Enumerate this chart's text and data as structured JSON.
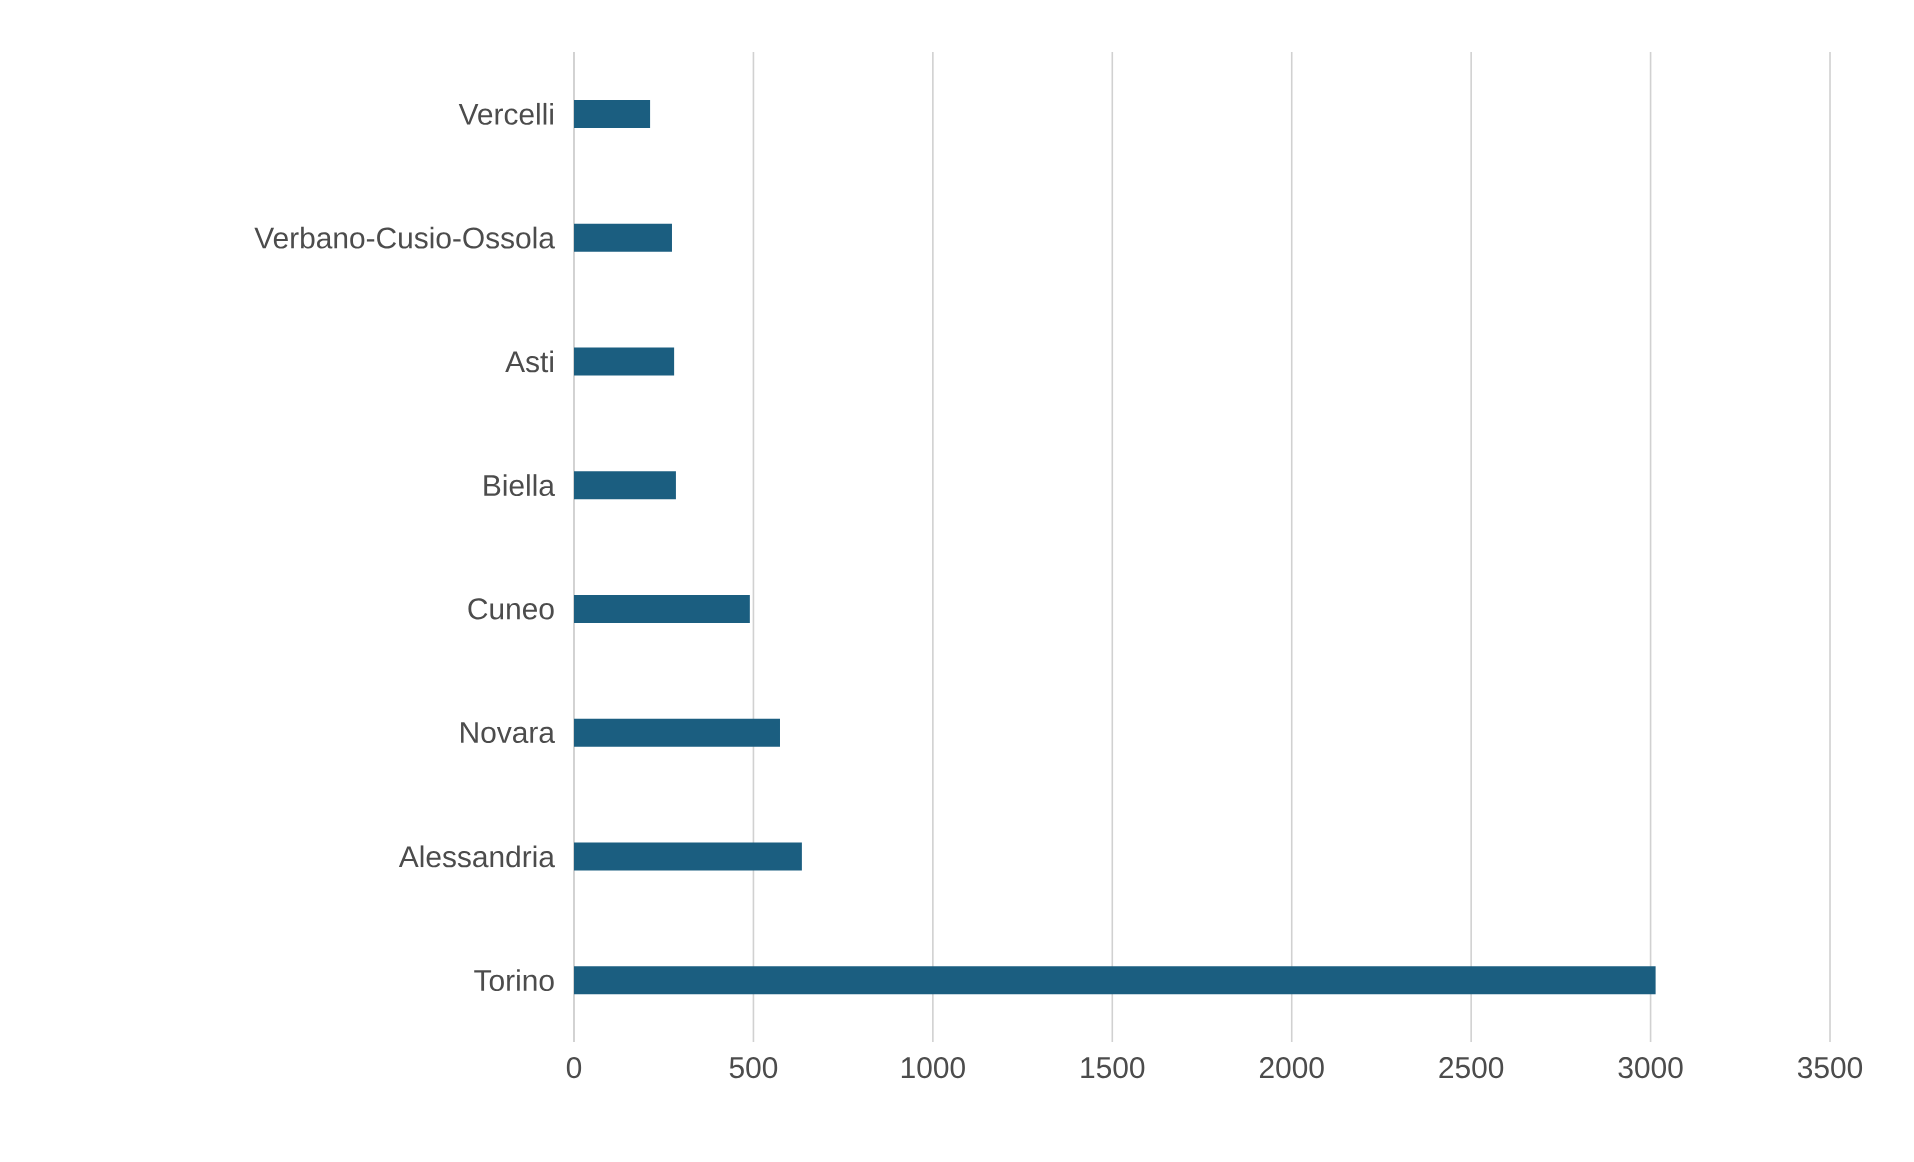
{
  "chart_data": {
    "type": "bar",
    "orientation": "horizontal",
    "categories": [
      "Vercelli",
      "Verbano-Cusio-Ossola",
      "Asti",
      "Biella",
      "Cuneo",
      "Novara",
      "Alessandria",
      "Torino"
    ],
    "values": [
      212,
      273,
      279,
      284,
      490,
      574,
      635,
      3014
    ],
    "color": "#1b5e80",
    "xlim": [
      0,
      3500
    ],
    "xticks": [
      0,
      500,
      1000,
      1500,
      2000,
      2500,
      3000,
      3500
    ],
    "grid": "x"
  }
}
